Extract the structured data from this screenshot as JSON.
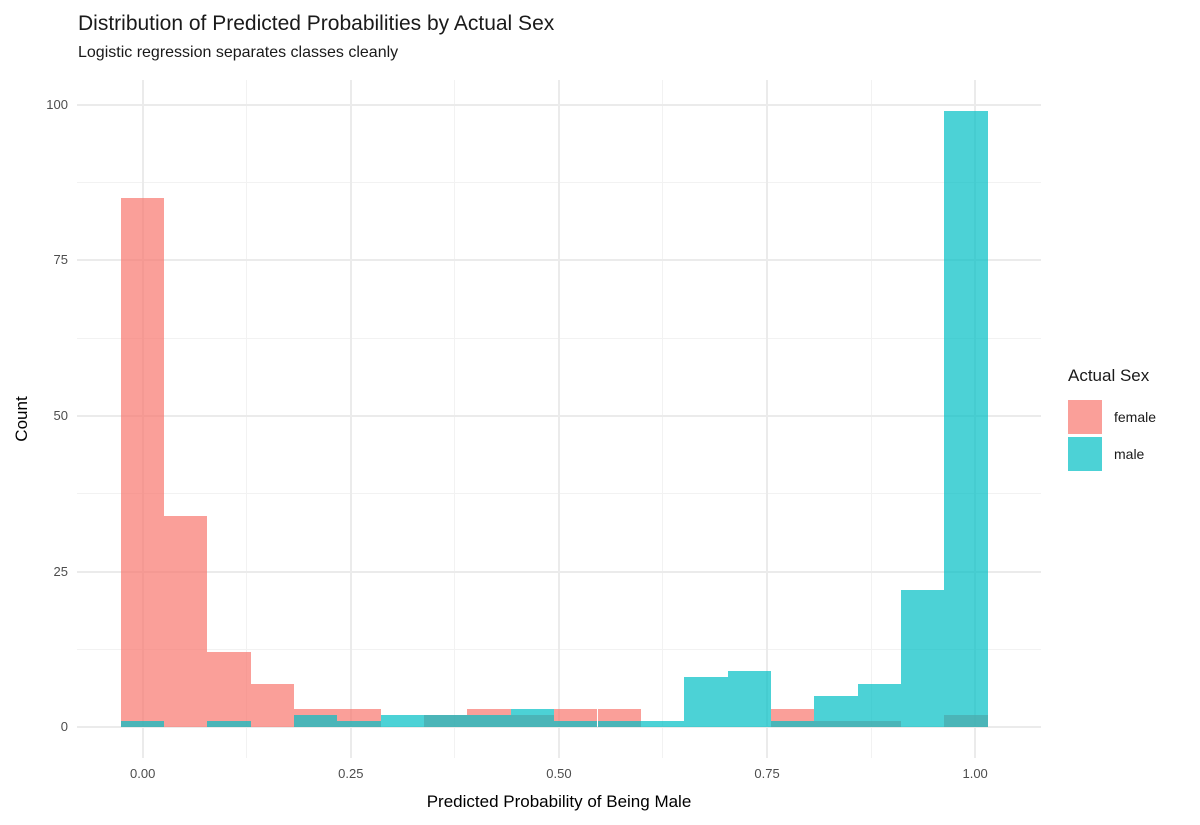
{
  "title": "Distribution of Predicted Probabilities by Actual Sex",
  "subtitle": "Logistic regression separates classes cleanly",
  "legend": {
    "title": "Actual Sex",
    "items": [
      {
        "label": "female",
        "color": "#F8766D",
        "alpha": 0.7
      },
      {
        "label": "male",
        "color": "#00BFC4",
        "alpha": 0.7
      }
    ]
  },
  "colors": {
    "background": "#ffffff",
    "grid_major": "#ebebeb",
    "grid_minor": "#f2f2f2",
    "tick_text": "#4d4d4d",
    "title_text": "#1a1a1a",
    "female_fill": "rgba(248,118,109,0.7)",
    "male_fill": "rgba(0,191,196,0.7)"
  },
  "chart_data": {
    "type": "bar",
    "subtype": "overlaid-histogram",
    "title": "Distribution of Predicted Probabilities by Actual Sex",
    "subtitle": "Logistic regression separates classes cleanly",
    "xlabel": "Predicted Probability of Being Male",
    "ylabel": "Count",
    "legend_position": "right",
    "grid": true,
    "bin_start": -0.0263,
    "bin_width": 0.05206,
    "n_bins": 20,
    "bin_centers": [
      0.0,
      0.052,
      0.104,
      0.156,
      0.208,
      0.26,
      0.312,
      0.364,
      0.416,
      0.468,
      0.52,
      0.572,
      0.624,
      0.676,
      0.728,
      0.78,
      0.832,
      0.884,
      0.937,
      0.989
    ],
    "series": [
      {
        "name": "female",
        "color": "#F8766D",
        "alpha": 0.7,
        "counts": [
          85,
          34,
          12,
          7,
          3,
          3,
          0,
          2,
          3,
          2,
          3,
          3,
          0,
          0,
          0,
          3,
          1,
          1,
          0,
          2
        ]
      },
      {
        "name": "male",
        "color": "#00BFC4",
        "alpha": 0.7,
        "counts": [
          1,
          0,
          1,
          0,
          2,
          1,
          2,
          2,
          2,
          3,
          1,
          1,
          1,
          8,
          9,
          1,
          5,
          7,
          22,
          99
        ]
      }
    ],
    "xlim": [
      -0.0789,
      1.0791
    ],
    "ylim": [
      -4.95,
      103.95
    ],
    "x_ticks": [
      {
        "value": 0.0,
        "label": "0.00"
      },
      {
        "value": 0.25,
        "label": "0.25"
      },
      {
        "value": 0.5,
        "label": "0.50"
      },
      {
        "value": 0.75,
        "label": "0.75"
      },
      {
        "value": 1.0,
        "label": "1.00"
      }
    ],
    "y_ticks": [
      {
        "value": 0,
        "label": "0"
      },
      {
        "value": 25,
        "label": "25"
      },
      {
        "value": 50,
        "label": "50"
      },
      {
        "value": 75,
        "label": "75"
      },
      {
        "value": 100,
        "label": "100"
      }
    ],
    "x_minor_ticks": [
      0.125,
      0.375,
      0.625,
      0.875
    ],
    "y_minor_ticks": [
      12.5,
      37.5,
      62.5,
      87.5
    ]
  }
}
